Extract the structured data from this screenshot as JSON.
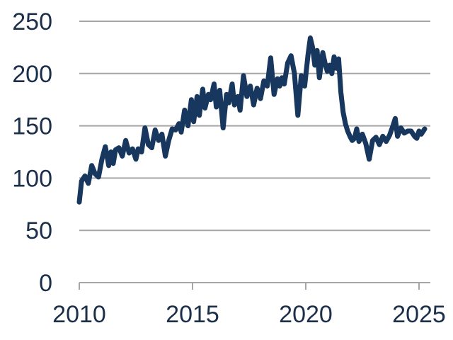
{
  "chart_data": {
    "type": "line",
    "title": "",
    "xlabel": "",
    "ylabel": "",
    "xlim": [
      2010,
      2025.5
    ],
    "ylim": [
      0,
      250
    ],
    "x_ticks": [
      2010,
      2015,
      2020,
      2025
    ],
    "x_tick_labels": [
      "2010",
      "2015",
      "2020",
      "2025"
    ],
    "y_ticks": [
      0,
      50,
      100,
      150,
      200,
      250
    ],
    "y_tick_labels": [
      "0",
      "50",
      "100",
      "150",
      "200",
      "250"
    ],
    "grid": "horizontal",
    "legend": "none",
    "colors": {
      "series": "#17375e",
      "grid": "#a6a6a6",
      "text": "#1c2f4a"
    },
    "series": [
      {
        "x": [
          2010.0,
          2010.1,
          2010.25,
          2010.4,
          2010.55,
          2010.7,
          2010.85,
          2011.0,
          2011.15,
          2011.3,
          2011.4,
          2011.5,
          2011.6,
          2011.75,
          2011.9,
          2012.05,
          2012.2,
          2012.35,
          2012.5,
          2012.6,
          2012.75,
          2012.9,
          2013.05,
          2013.2,
          2013.35,
          2013.5,
          2013.65,
          2013.8,
          2013.95,
          2014.1,
          2014.25,
          2014.4,
          2014.5,
          2014.65,
          2014.8,
          2014.95,
          2015.05,
          2015.2,
          2015.3,
          2015.45,
          2015.55,
          2015.7,
          2015.8,
          2015.95,
          2016.05,
          2016.2,
          2016.35,
          2016.5,
          2016.6,
          2016.75,
          2016.85,
          2017.0,
          2017.1,
          2017.25,
          2017.4,
          2017.55,
          2017.7,
          2017.85,
          2018.0,
          2018.15,
          2018.3,
          2018.45,
          2018.6,
          2018.75,
          2018.85,
          2018.95,
          2019.05,
          2019.2,
          2019.35,
          2019.5,
          2019.65,
          2019.8,
          2019.95,
          2020.1,
          2020.2,
          2020.3,
          2020.4,
          2020.5,
          2020.6,
          2020.75,
          2020.85,
          2020.95,
          2021.05,
          2021.15,
          2021.25,
          2021.35,
          2021.45,
          2021.55,
          2021.65,
          2021.75,
          2021.85,
          2021.95,
          2022.05,
          2022.15,
          2022.25,
          2022.35,
          2022.5,
          2022.65,
          2022.8,
          2022.95,
          2023.1,
          2023.25,
          2023.4,
          2023.55,
          2023.7,
          2023.85,
          2023.95,
          2024.05,
          2024.2,
          2024.35,
          2024.5,
          2024.65,
          2024.8,
          2024.9,
          2025.0,
          2025.1,
          2025.25
        ],
        "values": [
          77,
          97,
          102,
          95,
          112,
          104,
          101,
          118,
          130,
          112,
          125,
          114,
          127,
          129,
          121,
          136,
          124,
          128,
          118,
          128,
          125,
          148,
          132,
          129,
          146,
          136,
          142,
          121,
          136,
          147,
          146,
          152,
          144,
          165,
          150,
          175,
          154,
          178,
          160,
          185,
          167,
          180,
          175,
          190,
          168,
          184,
          148,
          180,
          172,
          190,
          170,
          178,
          165,
          198,
          178,
          188,
          170,
          186,
          176,
          193,
          188,
          215,
          180,
          195,
          188,
          196,
          190,
          210,
          217,
          200,
          160,
          198,
          188,
          218,
          234,
          225,
          208,
          222,
          196,
          220,
          210,
          202,
          208,
          200,
          216,
          205,
          214,
          182,
          163,
          152,
          145,
          140,
          136,
          138,
          147,
          135,
          142,
          133,
          118,
          136,
          139,
          132,
          140,
          135,
          141,
          150,
          157,
          140,
          148,
          143,
          145,
          145,
          140,
          138,
          145,
          142,
          147
        ]
      }
    ]
  }
}
